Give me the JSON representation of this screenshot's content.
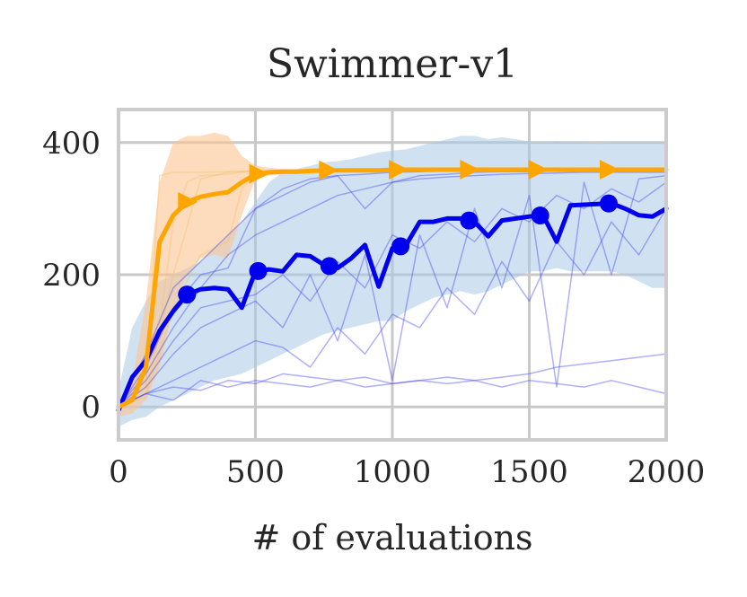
{
  "chart_data": {
    "type": "line",
    "title": "Swimmer-v1",
    "xlabel": "# of evaluations",
    "ylabel": "",
    "xlim": [
      0,
      2000
    ],
    "ylim": [
      -50,
      450
    ],
    "xticks": [
      0,
      500,
      1000,
      1500,
      2000
    ],
    "xtick_labels": [
      "0",
      "500",
      "1000",
      "1500",
      "2000"
    ],
    "yticks": [
      0,
      200,
      400
    ],
    "ytick_labels": [
      "0",
      "200",
      "400"
    ],
    "grid": true,
    "colors": {
      "blue_line": "#0000ee",
      "blue_band": "#a9cbe5",
      "blue_trials": "#5050f0",
      "orange_line": "#ffa500",
      "orange_band": "#fbc592",
      "orange_trials": "#f5c46a",
      "grid": "#c8c8c8",
      "frame": "#cccccc"
    },
    "series": [
      {
        "name": "blue",
        "marker": "circle",
        "color": "#0000ee",
        "x": [
          0,
          50,
          100,
          150,
          200,
          250,
          300,
          350,
          400,
          450,
          500,
          550,
          600,
          650,
          700,
          750,
          800,
          850,
          900,
          950,
          1000,
          1050,
          1100,
          1150,
          1200,
          1250,
          1300,
          1350,
          1400,
          1450,
          1500,
          1550,
          1600,
          1650,
          1700,
          1750,
          1800,
          1850,
          1900,
          1950,
          2000
        ],
        "y": [
          -5,
          45,
          70,
          115,
          145,
          170,
          178,
          180,
          178,
          150,
          205,
          208,
          205,
          230,
          228,
          215,
          210,
          225,
          245,
          182,
          240,
          245,
          280,
          280,
          285,
          285,
          280,
          258,
          282,
          285,
          288,
          290,
          250,
          305,
          306,
          307,
          308,
          300,
          290,
          288,
          300
        ],
        "marker_x": [
          250,
          510,
          770,
          1030,
          1280,
          1540,
          1790
        ],
        "band_upper": [
          25,
          120,
          160,
          190,
          200,
          210,
          220,
          240,
          260,
          280,
          310,
          340,
          355,
          360,
          365,
          370,
          372,
          375,
          380,
          385,
          388,
          390,
          395,
          400,
          405,
          410,
          410,
          405,
          408,
          405,
          402,
          400,
          402,
          400,
          400,
          398,
          400,
          400,
          400,
          400,
          400
        ],
        "band_lower": [
          -30,
          -20,
          -15,
          0,
          10,
          20,
          30,
          40,
          45,
          50,
          60,
          70,
          80,
          90,
          100,
          110,
          115,
          120,
          125,
          130,
          130,
          145,
          155,
          165,
          170,
          175,
          170,
          175,
          185,
          195,
          205,
          205,
          210,
          205,
          205,
          205,
          205,
          200,
          190,
          180,
          180
        ]
      },
      {
        "name": "orange",
        "marker": "triangle-right",
        "color": "#ffa500",
        "x": [
          0,
          50,
          100,
          150,
          200,
          250,
          300,
          350,
          400,
          450,
          500,
          550,
          600,
          650,
          700,
          750,
          800,
          850,
          900,
          950,
          1000,
          1050,
          1100,
          1150,
          1200,
          1250,
          1300,
          1350,
          1400,
          1450,
          1500,
          1550,
          1600,
          1650,
          1700,
          1750,
          1800,
          1850,
          1900,
          1950,
          2000
        ],
        "y": [
          0,
          10,
          60,
          250,
          290,
          310,
          318,
          322,
          325,
          340,
          352,
          355,
          356,
          356,
          357,
          358,
          358,
          358,
          358,
          358,
          359,
          359,
          359,
          359,
          359,
          359,
          359,
          359,
          359,
          359,
          359,
          359,
          359,
          359,
          359,
          359,
          359,
          359,
          359,
          359,
          359
        ],
        "marker_x": [
          250,
          510,
          765,
          1020,
          1280,
          1530,
          1790
        ],
        "band_upper": [
          10,
          40,
          160,
          340,
          400,
          410,
          410,
          415,
          410,
          380,
          365,
          362,
          360,
          360,
          360,
          360,
          360,
          360,
          360,
          360,
          360,
          360,
          360,
          360,
          360,
          360,
          360,
          360,
          360,
          360,
          360,
          360,
          360,
          360,
          360,
          360,
          360,
          360,
          360,
          360,
          360
        ],
        "band_lower": [
          -15,
          -10,
          10,
          60,
          150,
          200,
          225,
          230,
          225,
          290,
          345,
          350,
          352,
          352,
          352,
          355,
          355,
          355,
          355,
          355,
          355,
          355,
          355,
          355,
          355,
          355,
          355,
          355,
          355,
          355,
          355,
          355,
          355,
          355,
          355,
          355,
          355,
          355,
          355,
          355,
          355
        ]
      }
    ],
    "trials": [
      {
        "color": "orange",
        "x": [
          0,
          100,
          150,
          200,
          300,
          400,
          500,
          700,
          1000,
          1500,
          2000
        ],
        "y": [
          0,
          30,
          350,
          355,
          355,
          356,
          357,
          358,
          358,
          359,
          359
        ]
      },
      {
        "color": "orange",
        "x": [
          0,
          100,
          200,
          300,
          350,
          400,
          500,
          700,
          1000,
          1500,
          2000
        ],
        "y": [
          0,
          20,
          200,
          345,
          350,
          355,
          357,
          358,
          358,
          359,
          359
        ]
      },
      {
        "color": "orange",
        "x": [
          0,
          150,
          200,
          250,
          300,
          400,
          450,
          500,
          700,
          1000,
          1500,
          2000
        ],
        "y": [
          0,
          120,
          280,
          340,
          350,
          352,
          355,
          357,
          358,
          358,
          359,
          359
        ]
      },
      {
        "color": "orange",
        "x": [
          0,
          100,
          200,
          300,
          400,
          450,
          500,
          550,
          700,
          1000,
          1500,
          2000
        ],
        "y": [
          0,
          15,
          150,
          230,
          250,
          330,
          352,
          356,
          358,
          358,
          359,
          359
        ]
      },
      {
        "color": "blue",
        "x": [
          0,
          50,
          100,
          200,
          300,
          400,
          500,
          600,
          700,
          800,
          900,
          1000,
          1100,
          1200,
          1300,
          1400,
          1500,
          1600,
          1700,
          1800,
          1900,
          2000
        ],
        "y": [
          0,
          10,
          20,
          30,
          25,
          40,
          35,
          50,
          45,
          40,
          30,
          35,
          40,
          45,
          40,
          45,
          50,
          60,
          65,
          70,
          75,
          80
        ]
      },
      {
        "color": "blue",
        "x": [
          0,
          100,
          200,
          300,
          400,
          500,
          600,
          700,
          800,
          900,
          1000,
          1100,
          1200,
          1300,
          1400,
          1500,
          1600,
          1700,
          1800,
          1900,
          2000
        ],
        "y": [
          0,
          20,
          10,
          40,
          30,
          40,
          35,
          30,
          40,
          45,
          35,
          40,
          35,
          40,
          30,
          40,
          35,
          30,
          40,
          30,
          20
        ]
      },
      {
        "color": "blue",
        "x": [
          0,
          100,
          200,
          300,
          400,
          500,
          600,
          700,
          800,
          900,
          1000,
          1100,
          1200,
          1300,
          1400,
          1500,
          1600,
          1700,
          1800,
          1900,
          2000
        ],
        "y": [
          0,
          80,
          180,
          220,
          260,
          300,
          320,
          340,
          350,
          352,
          355,
          356,
          357,
          357,
          357,
          358,
          358,
          358,
          358,
          358,
          358
        ]
      },
      {
        "color": "blue",
        "x": [
          0,
          100,
          200,
          300,
          400,
          500,
          600,
          700,
          800,
          900,
          1000,
          1100,
          1200,
          1300,
          1400,
          1500,
          1600,
          1700,
          1800,
          1900,
          2000
        ],
        "y": [
          0,
          60,
          150,
          200,
          210,
          300,
          330,
          345,
          350,
          300,
          340,
          350,
          352,
          355,
          356,
          356,
          357,
          357,
          357,
          357,
          357
        ]
      },
      {
        "color": "blue",
        "x": [
          0,
          100,
          200,
          300,
          400,
          500,
          600,
          700,
          800,
          900,
          1000,
          1100,
          1200,
          1300,
          1400,
          1500,
          1600,
          1700,
          1800,
          1900,
          2000
        ],
        "y": [
          0,
          40,
          100,
          150,
          160,
          170,
          200,
          160,
          220,
          180,
          260,
          240,
          280,
          250,
          300,
          280,
          320,
          300,
          330,
          310,
          340
        ]
      },
      {
        "color": "blue",
        "x": [
          0,
          100,
          200,
          300,
          400,
          500,
          600,
          700,
          800,
          900,
          1000,
          1100,
          1200,
          1300,
          1400,
          1500,
          1600,
          1700,
          1800,
          1900,
          2000
        ],
        "y": [
          0,
          30,
          80,
          120,
          140,
          160,
          120,
          200,
          100,
          230,
          40,
          260,
          150,
          300,
          180,
          320,
          30,
          340,
          200,
          345,
          350
        ]
      },
      {
        "color": "blue",
        "x": [
          0,
          100,
          200,
          300,
          400,
          500,
          600,
          700,
          800,
          900,
          1000,
          1100,
          1200,
          1300,
          1400,
          1500,
          1600,
          1700,
          1800,
          1900,
          2000
        ],
        "y": [
          0,
          50,
          120,
          180,
          230,
          260,
          280,
          300,
          320,
          330,
          340,
          345,
          348,
          350,
          352,
          353,
          354,
          355,
          355,
          355,
          355
        ]
      },
      {
        "color": "blue",
        "x": [
          0,
          100,
          200,
          300,
          400,
          500,
          600,
          700,
          800,
          900,
          1000,
          1100,
          1200,
          1300,
          1400,
          1500,
          1600,
          1700,
          1800,
          1900,
          2000
        ],
        "y": [
          0,
          20,
          40,
          60,
          80,
          100,
          90,
          60,
          120,
          80,
          140,
          120,
          180,
          140,
          220,
          160,
          250,
          200,
          280,
          230,
          300
        ]
      }
    ]
  }
}
